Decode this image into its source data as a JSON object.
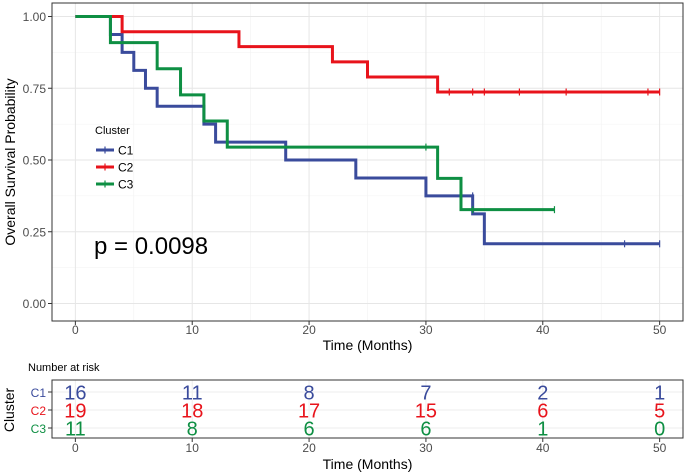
{
  "chart_data": [
    {
      "type": "line",
      "subtype": "kaplan-meier",
      "title": "",
      "xlabel": "Time (Months)",
      "ylabel": "Overall Survival Probability",
      "xlim": [
        -2,
        52
      ],
      "ylim": [
        0,
        1
      ],
      "x_ticks": [
        0,
        10,
        20,
        30,
        40,
        50
      ],
      "x_tick_labels": [
        "0",
        "10",
        "20",
        "30",
        "40",
        "50"
      ],
      "y_ticks": [
        0,
        0.25,
        0.5,
        0.75,
        1.0
      ],
      "y_tick_labels": [
        "0.00",
        "0.25",
        "0.50",
        "0.75",
        "1.00"
      ],
      "grid": true,
      "legend": {
        "title": "Cluster",
        "position": "left-middle"
      },
      "annotation": "p = 0.0098",
      "series": [
        {
          "name": "C1",
          "color": "#3A4B9C",
          "steps": [
            [
              0,
              1.0
            ],
            [
              3,
              0.9375
            ],
            [
              4,
              0.875
            ],
            [
              5,
              0.8125
            ],
            [
              6,
              0.75
            ],
            [
              7,
              0.6875
            ],
            [
              11,
              0.625
            ],
            [
              12,
              0.5625
            ],
            [
              18,
              0.5
            ],
            [
              24,
              0.4375
            ],
            [
              30,
              0.375
            ],
            [
              34,
              0.3125
            ],
            [
              35,
              0.208
            ]
          ],
          "end": 50,
          "censored": [
            [
              34,
              0.375
            ],
            [
              47,
              0.208
            ],
            [
              50,
              0.208
            ]
          ]
        },
        {
          "name": "C2",
          "color": "#E8131B",
          "steps": [
            [
              0,
              1.0
            ],
            [
              4,
              0.947
            ],
            [
              14,
              0.895
            ],
            [
              22,
              0.842
            ],
            [
              25,
              0.789
            ],
            [
              31,
              0.737
            ]
          ],
          "end": 50,
          "censored": [
            [
              32,
              0.737
            ],
            [
              34,
              0.737
            ],
            [
              35,
              0.737
            ],
            [
              38,
              0.737
            ],
            [
              42,
              0.737
            ],
            [
              49,
              0.737
            ],
            [
              50,
              0.737
            ]
          ]
        },
        {
          "name": "C3",
          "color": "#0E8F43",
          "steps": [
            [
              0,
              1.0
            ],
            [
              3,
              0.909
            ],
            [
              7,
              0.818
            ],
            [
              9,
              0.727
            ],
            [
              11,
              0.636
            ],
            [
              13,
              0.545
            ],
            [
              31,
              0.436
            ],
            [
              33,
              0.327
            ]
          ],
          "end": 41,
          "censored": [
            [
              30,
              0.545
            ],
            [
              34,
              0.327
            ],
            [
              41,
              0.327
            ]
          ]
        }
      ]
    },
    {
      "type": "table",
      "title": "Number at risk",
      "xlabel": "Time (Months)",
      "ylabel": "Cluster",
      "x": [
        0,
        10,
        20,
        30,
        40,
        50
      ],
      "x_tick_labels": [
        "0",
        "10",
        "20",
        "30",
        "40",
        "50"
      ],
      "rows": [
        {
          "name": "C1",
          "color": "#3A4B9C",
          "values": [
            "16",
            "11",
            "8",
            "7",
            "2",
            "1"
          ]
        },
        {
          "name": "C2",
          "color": "#E8131B",
          "values": [
            "19",
            "18",
            "17",
            "15",
            "6",
            "5"
          ]
        },
        {
          "name": "C3",
          "color": "#0E8F43",
          "values": [
            "11",
            "8",
            "6",
            "6",
            "1",
            "0"
          ]
        }
      ]
    }
  ]
}
